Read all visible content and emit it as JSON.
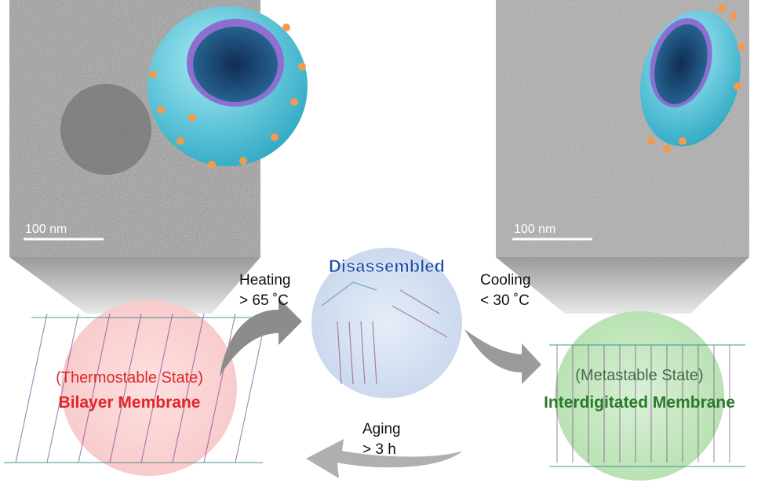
{
  "left_micrograph": {
    "scale_bar": "100 nm"
  },
  "right_micrograph": {
    "scale_bar": "100 nm"
  },
  "center": {
    "title": "Disassembled",
    "color": "#1f4fa8"
  },
  "heating": {
    "line1": "Heating",
    "line2": "> 65 ˚C"
  },
  "cooling": {
    "line1": "Cooling",
    "line2": "< 30 ˚C"
  },
  "aging": {
    "line1": "Aging",
    "line2": "> 3 h"
  },
  "left_state": {
    "state": "(Thermostable State)",
    "name": "Bilayer Membrane",
    "color": "#e0262a"
  },
  "right_state": {
    "state": "(Metastable State)",
    "name": "Interdigitated Membrane",
    "color": "#2a7a2a"
  }
}
